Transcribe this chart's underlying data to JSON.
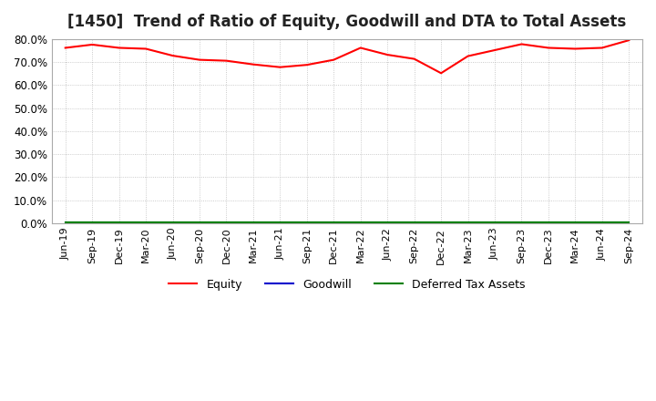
{
  "title": "[1450]  Trend of Ratio of Equity, Goodwill and DTA to Total Assets",
  "title_fontsize": 12,
  "x_labels": [
    "Jun-19",
    "Sep-19",
    "Dec-19",
    "Mar-20",
    "Jun-20",
    "Sep-20",
    "Dec-20",
    "Mar-21",
    "Jun-21",
    "Sep-21",
    "Dec-21",
    "Mar-22",
    "Jun-22",
    "Sep-22",
    "Dec-22",
    "Mar-23",
    "Jun-23",
    "Sep-23",
    "Dec-23",
    "Mar-24",
    "Jun-24",
    "Sep-24"
  ],
  "equity": [
    0.762,
    0.776,
    0.762,
    0.758,
    0.728,
    0.71,
    0.706,
    0.69,
    0.678,
    0.688,
    0.71,
    0.762,
    0.732,
    0.714,
    0.652,
    0.726,
    0.752,
    0.778,
    0.762,
    0.758,
    0.762,
    0.795
  ],
  "goodwill": [
    0.002,
    0.002,
    0.002,
    0.002,
    0.002,
    0.002,
    0.002,
    0.002,
    0.002,
    0.002,
    0.002,
    0.002,
    0.002,
    0.002,
    0.002,
    0.002,
    0.002,
    0.002,
    0.002,
    0.002,
    0.002,
    0.002
  ],
  "dta": [
    0.004,
    0.004,
    0.004,
    0.004,
    0.004,
    0.004,
    0.004,
    0.004,
    0.004,
    0.004,
    0.004,
    0.004,
    0.004,
    0.004,
    0.004,
    0.004,
    0.004,
    0.004,
    0.004,
    0.004,
    0.004,
    0.004
  ],
  "equity_color": "#ff0000",
  "goodwill_color": "#0000cc",
  "dta_color": "#008000",
  "ylim": [
    0.0,
    0.8
  ],
  "yticks": [
    0.0,
    0.1,
    0.2,
    0.3,
    0.4,
    0.5,
    0.6,
    0.7,
    0.8
  ],
  "legend_labels": [
    "Equity",
    "Goodwill",
    "Deferred Tax Assets"
  ],
  "background_color": "#ffffff",
  "plot_bg_color": "#ffffff",
  "grid_color": "#aaaaaa"
}
